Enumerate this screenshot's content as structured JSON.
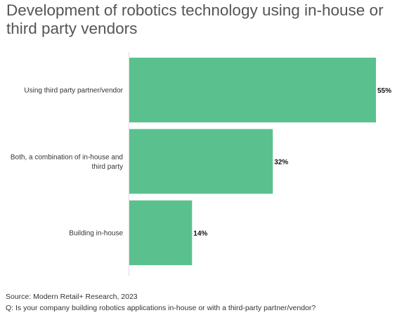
{
  "chart_data": {
    "type": "bar",
    "orientation": "horizontal",
    "title": "Development of robotics technology using in-house or third party vendors",
    "categories": [
      [
        "Using third party partner/vendor"
      ],
      [
        "Both, a combination of in-house and",
        "third party"
      ],
      [
        "Building in-house"
      ]
    ],
    "values": [
      55,
      32,
      14
    ],
    "value_labels": [
      "55%",
      "32%",
      "14%"
    ],
    "xlim": [
      0,
      55
    ],
    "grid": false,
    "bar_color": "#5ac18e"
  },
  "footer": {
    "source": "Source: Modern Retail+ Research, 2023",
    "question": "Q: Is your company building robotics applications in-house or with a third-party partner/vendor?"
  }
}
